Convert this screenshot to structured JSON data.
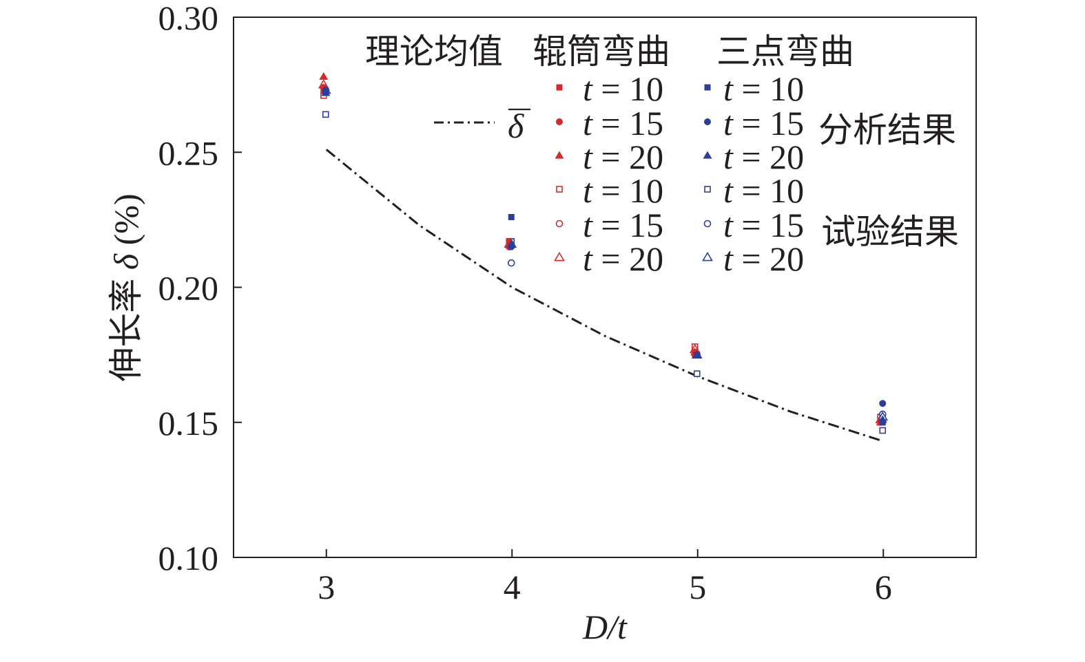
{
  "chart_data": {
    "type": "scatter",
    "x_label_prefix": "D",
    "x_label_suffix": "/t",
    "y_label_prefix": "伸长率 ",
    "y_label_symbol": "δ",
    "y_label_suffix": " (%)",
    "x_ticks": [
      "3",
      "4",
      "5",
      "6"
    ],
    "y_ticks": [
      "0.10",
      "0.15",
      "0.20",
      "0.25",
      "0.30"
    ],
    "xlim": [
      2.5,
      6.5
    ],
    "ylim": [
      0.1,
      0.3
    ],
    "grid": false,
    "legend": {
      "headers": [
        "理论均值",
        "辊筒弯曲",
        "三点弯曲"
      ],
      "theory_symbol": "δ",
      "t_var": "t",
      "t_eq": " = ",
      "entries_roller": [
        "10",
        "15",
        "20",
        "10",
        "15",
        "20"
      ],
      "entries_three_point": [
        "10",
        "15",
        "20",
        "10",
        "15",
        "20"
      ],
      "group_labels": [
        "分析结果",
        "试验结果"
      ]
    },
    "colors": {
      "roller": "#d42a2a",
      "three_point": "#2b3e9a",
      "theory": "#231f20",
      "axis": "#231f20"
    },
    "series": [
      {
        "method": "roller",
        "kind": "analysis",
        "t": 10,
        "marker": "square-filled",
        "x": [
          3,
          4,
          5,
          6
        ],
        "y": [
          0.273,
          0.217,
          0.176,
          0.15
        ]
      },
      {
        "method": "roller",
        "kind": "analysis",
        "t": 15,
        "marker": "circle-filled",
        "x": [
          3,
          4,
          5,
          6
        ],
        "y": [
          0.274,
          0.215,
          0.175,
          0.15
        ]
      },
      {
        "method": "roller",
        "kind": "analysis",
        "t": 20,
        "marker": "triangle-filled",
        "x": [
          3,
          4,
          5,
          6
        ],
        "y": [
          0.278,
          0.216,
          0.176,
          0.15
        ]
      },
      {
        "method": "roller",
        "kind": "test",
        "t": 10,
        "marker": "square-open",
        "x": [
          3,
          4,
          5,
          6
        ],
        "y": [
          0.271,
          0.217,
          0.178,
          0.152
        ]
      },
      {
        "method": "roller",
        "kind": "test",
        "t": 15,
        "marker": "circle-open",
        "x": [
          3,
          4,
          5,
          6
        ],
        "y": [
          0.274,
          0.215,
          0.176,
          0.152
        ]
      },
      {
        "method": "roller",
        "kind": "test",
        "t": 20,
        "marker": "triangle-open",
        "x": [
          3,
          4,
          5,
          6
        ],
        "y": [
          0.275,
          0.216,
          0.177,
          0.151
        ]
      },
      {
        "method": "three_point",
        "kind": "analysis",
        "t": 10,
        "marker": "square-filled",
        "x": [
          3,
          4,
          5,
          6
        ],
        "y": [
          0.272,
          0.226,
          0.175,
          0.15
        ]
      },
      {
        "method": "three_point",
        "kind": "analysis",
        "t": 15,
        "marker": "circle-filled",
        "x": [
          3,
          4,
          5,
          6
        ],
        "y": [
          0.273,
          0.215,
          0.175,
          0.157
        ]
      },
      {
        "method": "three_point",
        "kind": "analysis",
        "t": 20,
        "marker": "triangle-filled",
        "x": [
          3,
          4,
          5,
          6
        ],
        "y": [
          0.272,
          0.216,
          0.175,
          0.151
        ]
      },
      {
        "method": "three_point",
        "kind": "test",
        "t": 10,
        "marker": "square-open",
        "x": [
          3,
          4,
          5,
          6
        ],
        "y": [
          0.264,
          0.217,
          0.168,
          0.147
        ]
      },
      {
        "method": "three_point",
        "kind": "test",
        "t": 15,
        "marker": "circle-open",
        "x": [
          3,
          4,
          5,
          6
        ],
        "y": [
          0.273,
          0.209,
          0.175,
          0.153
        ]
      },
      {
        "method": "three_point",
        "kind": "test",
        "t": 20,
        "marker": "triangle-open",
        "x": [
          3,
          4,
          5,
          6
        ],
        "y": [
          0.273,
          0.216,
          0.175,
          0.152
        ]
      }
    ],
    "theory_line": {
      "style": "dash-dot",
      "x": [
        3,
        3.5,
        4,
        4.5,
        5,
        5.5,
        6
      ],
      "y": [
        0.251,
        0.223,
        0.2,
        0.182,
        0.167,
        0.154,
        0.143
      ]
    }
  }
}
